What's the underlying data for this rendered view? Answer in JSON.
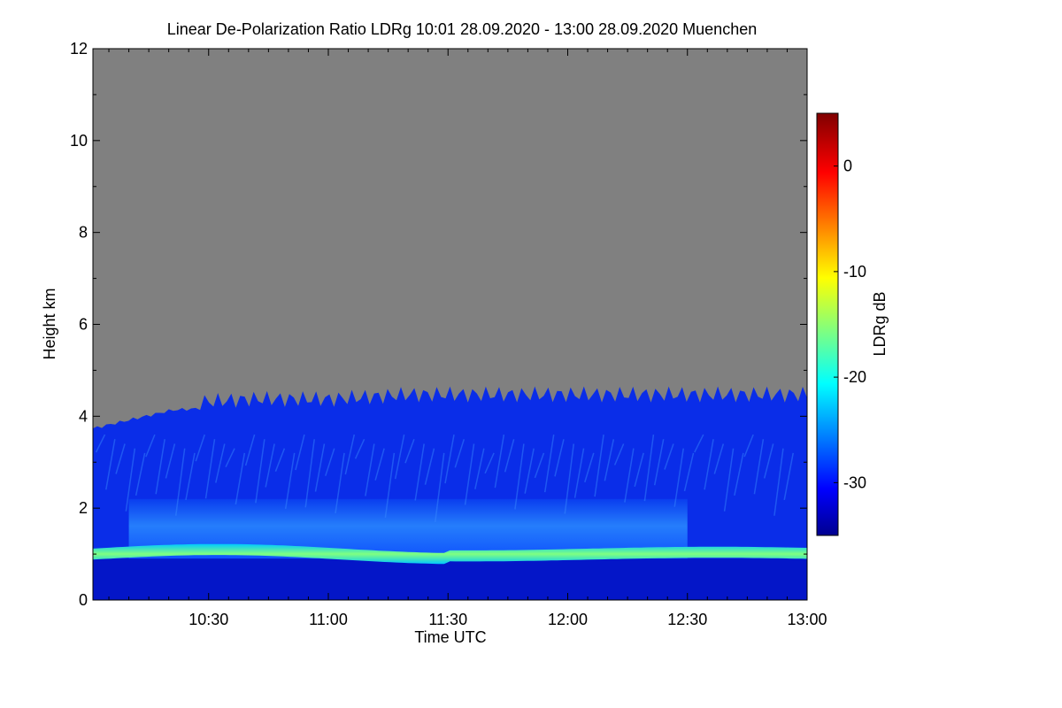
{
  "chart_data": {
    "type": "heatmap",
    "title": "Linear De-Polarization Ratio LDRg   10:01 28.09.2020 - 13:00 28.09.2020 Muenchen",
    "xlabel": "Time UTC",
    "ylabel": "Height km",
    "colorbar_label": "LDRg dB",
    "xlim": [
      "10:01",
      "13:00"
    ],
    "x_ticks": [
      "10:30",
      "11:00",
      "11:30",
      "12:00",
      "12:30",
      "13:00"
    ],
    "x_tick_minutes": [
      30,
      60,
      90,
      120,
      150,
      180
    ],
    "x_range_minutes": [
      1,
      180
    ],
    "ylim": [
      0,
      12
    ],
    "y_ticks": [
      "0",
      "2",
      "4",
      "6",
      "8",
      "10",
      "12"
    ],
    "y_tick_values": [
      0,
      2,
      4,
      6,
      8,
      10,
      12
    ],
    "colorbar_range_db": [
      -35,
      5
    ],
    "colorbar_ticks": [
      "0",
      "-10",
      "-20",
      "-30"
    ],
    "colorbar_tick_values": [
      0,
      -10,
      -20,
      -30
    ],
    "no_signal_color": "#808080",
    "colormap": "jet",
    "layers": [
      {
        "name": "aerosol-layer-top",
        "top_height_km": [
          3.7,
          4.1,
          4.2,
          4.2,
          4.3,
          4.3,
          4.3,
          4.3,
          4.3,
          4.3
        ]
      },
      {
        "name": "elevated-layer",
        "height_range_km": [
          0.9,
          2.2
        ],
        "ldr_db": -24
      },
      {
        "name": "boundary-layer-top",
        "height_km": 1.0,
        "ldr_db": -18
      },
      {
        "name": "surface-layer",
        "height_range_km": [
          0.0,
          0.9
        ],
        "ldr_db": -33
      }
    ]
  }
}
